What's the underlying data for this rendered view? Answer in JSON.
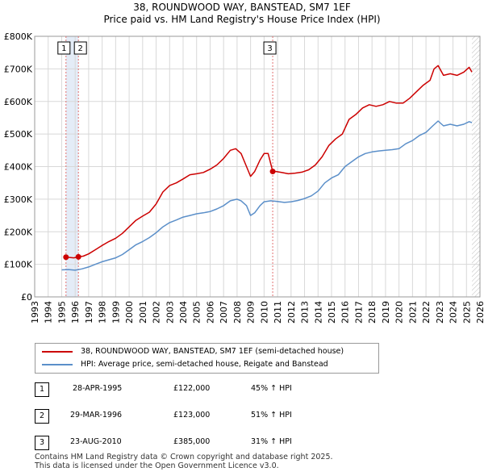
{
  "title": "38, ROUNDWOOD WAY, BANSTEAD, SM7 1EF",
  "subtitle": "Price paid vs. HM Land Registry's House Price Index (HPI)",
  "colors": {
    "property": "#cc0000",
    "hpi": "#5b8fc9",
    "grid": "#d8d8d8",
    "band": "#e4ecf7"
  },
  "chart_data": {
    "type": "line",
    "xlim": [
      1993,
      2026
    ],
    "ylim": [
      0,
      800000
    ],
    "x_ticks": [
      "1993",
      "1994",
      "1995",
      "1996",
      "1997",
      "1998",
      "1999",
      "2000",
      "2001",
      "2002",
      "2003",
      "2004",
      "2005",
      "2006",
      "2007",
      "2008",
      "2009",
      "2010",
      "2011",
      "2012",
      "2013",
      "2014",
      "2015",
      "2016",
      "2017",
      "2018",
      "2019",
      "2020",
      "2021",
      "2022",
      "2023",
      "2024",
      "2025",
      "2026"
    ],
    "y_ticks": [
      {
        "value": 0,
        "label": "£0"
      },
      {
        "value": 100000,
        "label": "£100K"
      },
      {
        "value": 200000,
        "label": "£200K"
      },
      {
        "value": 300000,
        "label": "£300K"
      },
      {
        "value": 400000,
        "label": "£400K"
      },
      {
        "value": 500000,
        "label": "£500K"
      },
      {
        "value": 600000,
        "label": "£600K"
      },
      {
        "value": 700000,
        "label": "£700K"
      },
      {
        "value": 800000,
        "label": "£800K"
      }
    ],
    "grid": true,
    "legend": "below",
    "series": [
      {
        "name": "38, ROUNDWOOD WAY, BANSTEAD, SM7 1EF (semi-detached house)",
        "x": [
          1995.32,
          1995.6,
          1995.9,
          1996.24,
          1996.6,
          1997.0,
          1997.5,
          1998.0,
          1998.5,
          1999.0,
          1999.5,
          2000.0,
          2000.5,
          2001.0,
          2001.5,
          2002.0,
          2002.5,
          2003.0,
          2003.5,
          2004.0,
          2004.5,
          2005.0,
          2005.5,
          2006.0,
          2006.5,
          2007.0,
          2007.5,
          2007.9,
          2008.3,
          2008.7,
          2009.0,
          2009.3,
          2009.7,
          2010.0,
          2010.3,
          2010.64,
          2010.9,
          2011.3,
          2011.8,
          2012.3,
          2012.8,
          2013.3,
          2013.8,
          2014.3,
          2014.8,
          2015.3,
          2015.8,
          2016.3,
          2016.8,
          2017.3,
          2017.8,
          2018.3,
          2018.8,
          2019.3,
          2019.8,
          2020.3,
          2020.8,
          2021.3,
          2021.8,
          2022.3,
          2022.6,
          2022.9,
          2023.3,
          2023.8,
          2024.3,
          2024.8,
          2025.2,
          2025.4
        ],
        "values": [
          122000,
          121000,
          120000,
          123000,
          125000,
          132000,
          145000,
          158000,
          170000,
          180000,
          195000,
          215000,
          235000,
          248000,
          260000,
          285000,
          322000,
          342000,
          350000,
          362000,
          375000,
          378000,
          382000,
          392000,
          405000,
          425000,
          450000,
          455000,
          440000,
          400000,
          370000,
          385000,
          420000,
          440000,
          440000,
          385000,
          385000,
          382000,
          378000,
          380000,
          383000,
          390000,
          405000,
          430000,
          465000,
          485000,
          500000,
          545000,
          560000,
          580000,
          590000,
          585000,
          590000,
          600000,
          595000,
          595000,
          610000,
          630000,
          650000,
          665000,
          700000,
          710000,
          680000,
          685000,
          680000,
          690000,
          705000,
          690000
        ]
      },
      {
        "name": "HPI: Average price, semi-detached house, Reigate and Banstead",
        "x": [
          1995.0,
          1995.5,
          1996.0,
          1996.5,
          1997.0,
          1997.5,
          1998.0,
          1998.5,
          1999.0,
          1999.5,
          2000.0,
          2000.5,
          2001.0,
          2001.5,
          2002.0,
          2002.5,
          2003.0,
          2003.5,
          2004.0,
          2004.5,
          2005.0,
          2005.5,
          2006.0,
          2006.5,
          2007.0,
          2007.5,
          2008.0,
          2008.3,
          2008.7,
          2009.0,
          2009.3,
          2009.7,
          2010.0,
          2010.5,
          2011.0,
          2011.5,
          2012.0,
          2012.5,
          2013.0,
          2013.5,
          2014.0,
          2014.5,
          2015.0,
          2015.5,
          2016.0,
          2016.5,
          2017.0,
          2017.5,
          2018.0,
          2018.5,
          2019.0,
          2019.5,
          2020.0,
          2020.5,
          2021.0,
          2021.5,
          2022.0,
          2022.5,
          2022.9,
          2023.3,
          2023.8,
          2024.3,
          2024.8,
          2025.2,
          2025.4
        ],
        "values": [
          83000,
          84000,
          82000,
          86000,
          92000,
          100000,
          108000,
          114000,
          120000,
          130000,
          145000,
          160000,
          170000,
          182000,
          197000,
          215000,
          228000,
          236000,
          245000,
          250000,
          255000,
          258000,
          262000,
          270000,
          280000,
          295000,
          300000,
          295000,
          280000,
          250000,
          258000,
          280000,
          292000,
          295000,
          293000,
          290000,
          292000,
          296000,
          302000,
          310000,
          325000,
          350000,
          365000,
          375000,
          400000,
          415000,
          430000,
          440000,
          445000,
          448000,
          450000,
          452000,
          455000,
          470000,
          480000,
          495000,
          505000,
          525000,
          540000,
          525000,
          530000,
          525000,
          530000,
          538000,
          535000
        ]
      }
    ],
    "annotations": [
      {
        "label": "1",
        "x": 1995.32,
        "y": 122000
      },
      {
        "label": "2",
        "x": 1996.24,
        "y": 123000
      },
      {
        "label": "3",
        "x": 2010.64,
        "y": 385000
      }
    ]
  },
  "legend_items": [
    {
      "label": "38, ROUNDWOOD WAY, BANSTEAD, SM7 1EF (semi-detached house)"
    },
    {
      "label": "HPI: Average price, semi-detached house, Reigate and Banstead"
    }
  ],
  "sales": [
    {
      "num": "1",
      "date": "28-APR-1995",
      "price": "£122,000",
      "hpi": "45% ↑ HPI"
    },
    {
      "num": "2",
      "date": "29-MAR-1996",
      "price": "£123,000",
      "hpi": "51% ↑ HPI"
    },
    {
      "num": "3",
      "date": "23-AUG-2010",
      "price": "£385,000",
      "hpi": "31% ↑ HPI"
    }
  ],
  "footer": {
    "line1": "Contains HM Land Registry data © Crown copyright and database right 2025.",
    "line2": "This data is licensed under the Open Government Licence v3.0."
  }
}
